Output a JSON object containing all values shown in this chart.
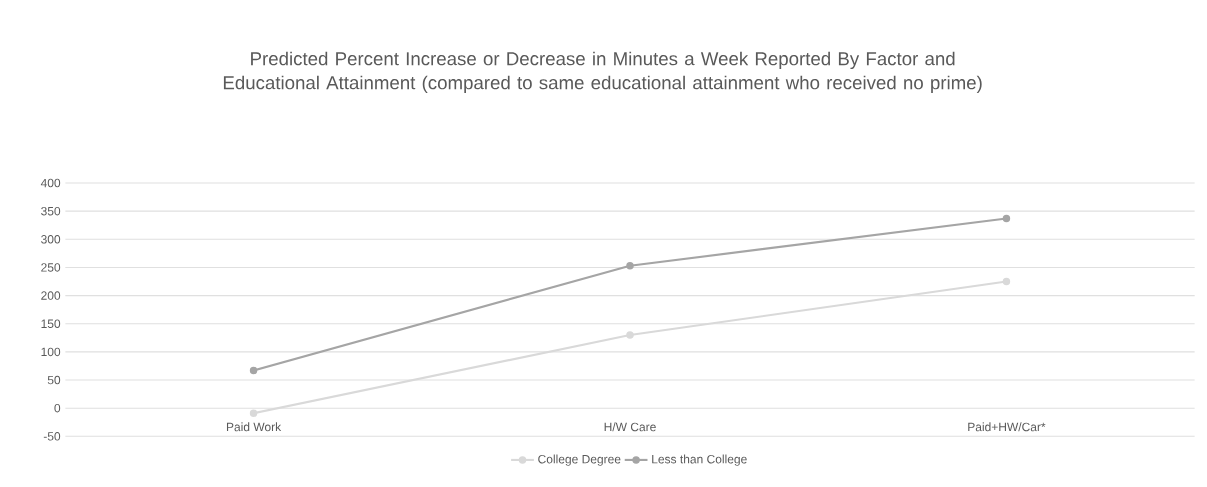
{
  "chart_data": {
    "type": "line",
    "title": "Predicted Percent Increase or Decrease in Minutes a Week Reported By Factor and Educational Attainment (compared to same educational attainment who received no prime)",
    "categories": [
      "Paid Work",
      "H/W Care",
      "Paid+HW/Car*"
    ],
    "series": [
      {
        "name": "College Degree",
        "color": "#d9d9d9",
        "values": [
          -9,
          130,
          225
        ]
      },
      {
        "name": "Less than College",
        "color": "#a5a5a5",
        "values": [
          67,
          253,
          337
        ]
      }
    ],
    "ylim": [
      -50,
      400
    ],
    "yticks": [
      -50,
      0,
      50,
      100,
      150,
      200,
      250,
      300,
      350,
      400
    ],
    "grid": "y",
    "legend": "bottom",
    "marker": "circle",
    "line_style": "solid"
  }
}
